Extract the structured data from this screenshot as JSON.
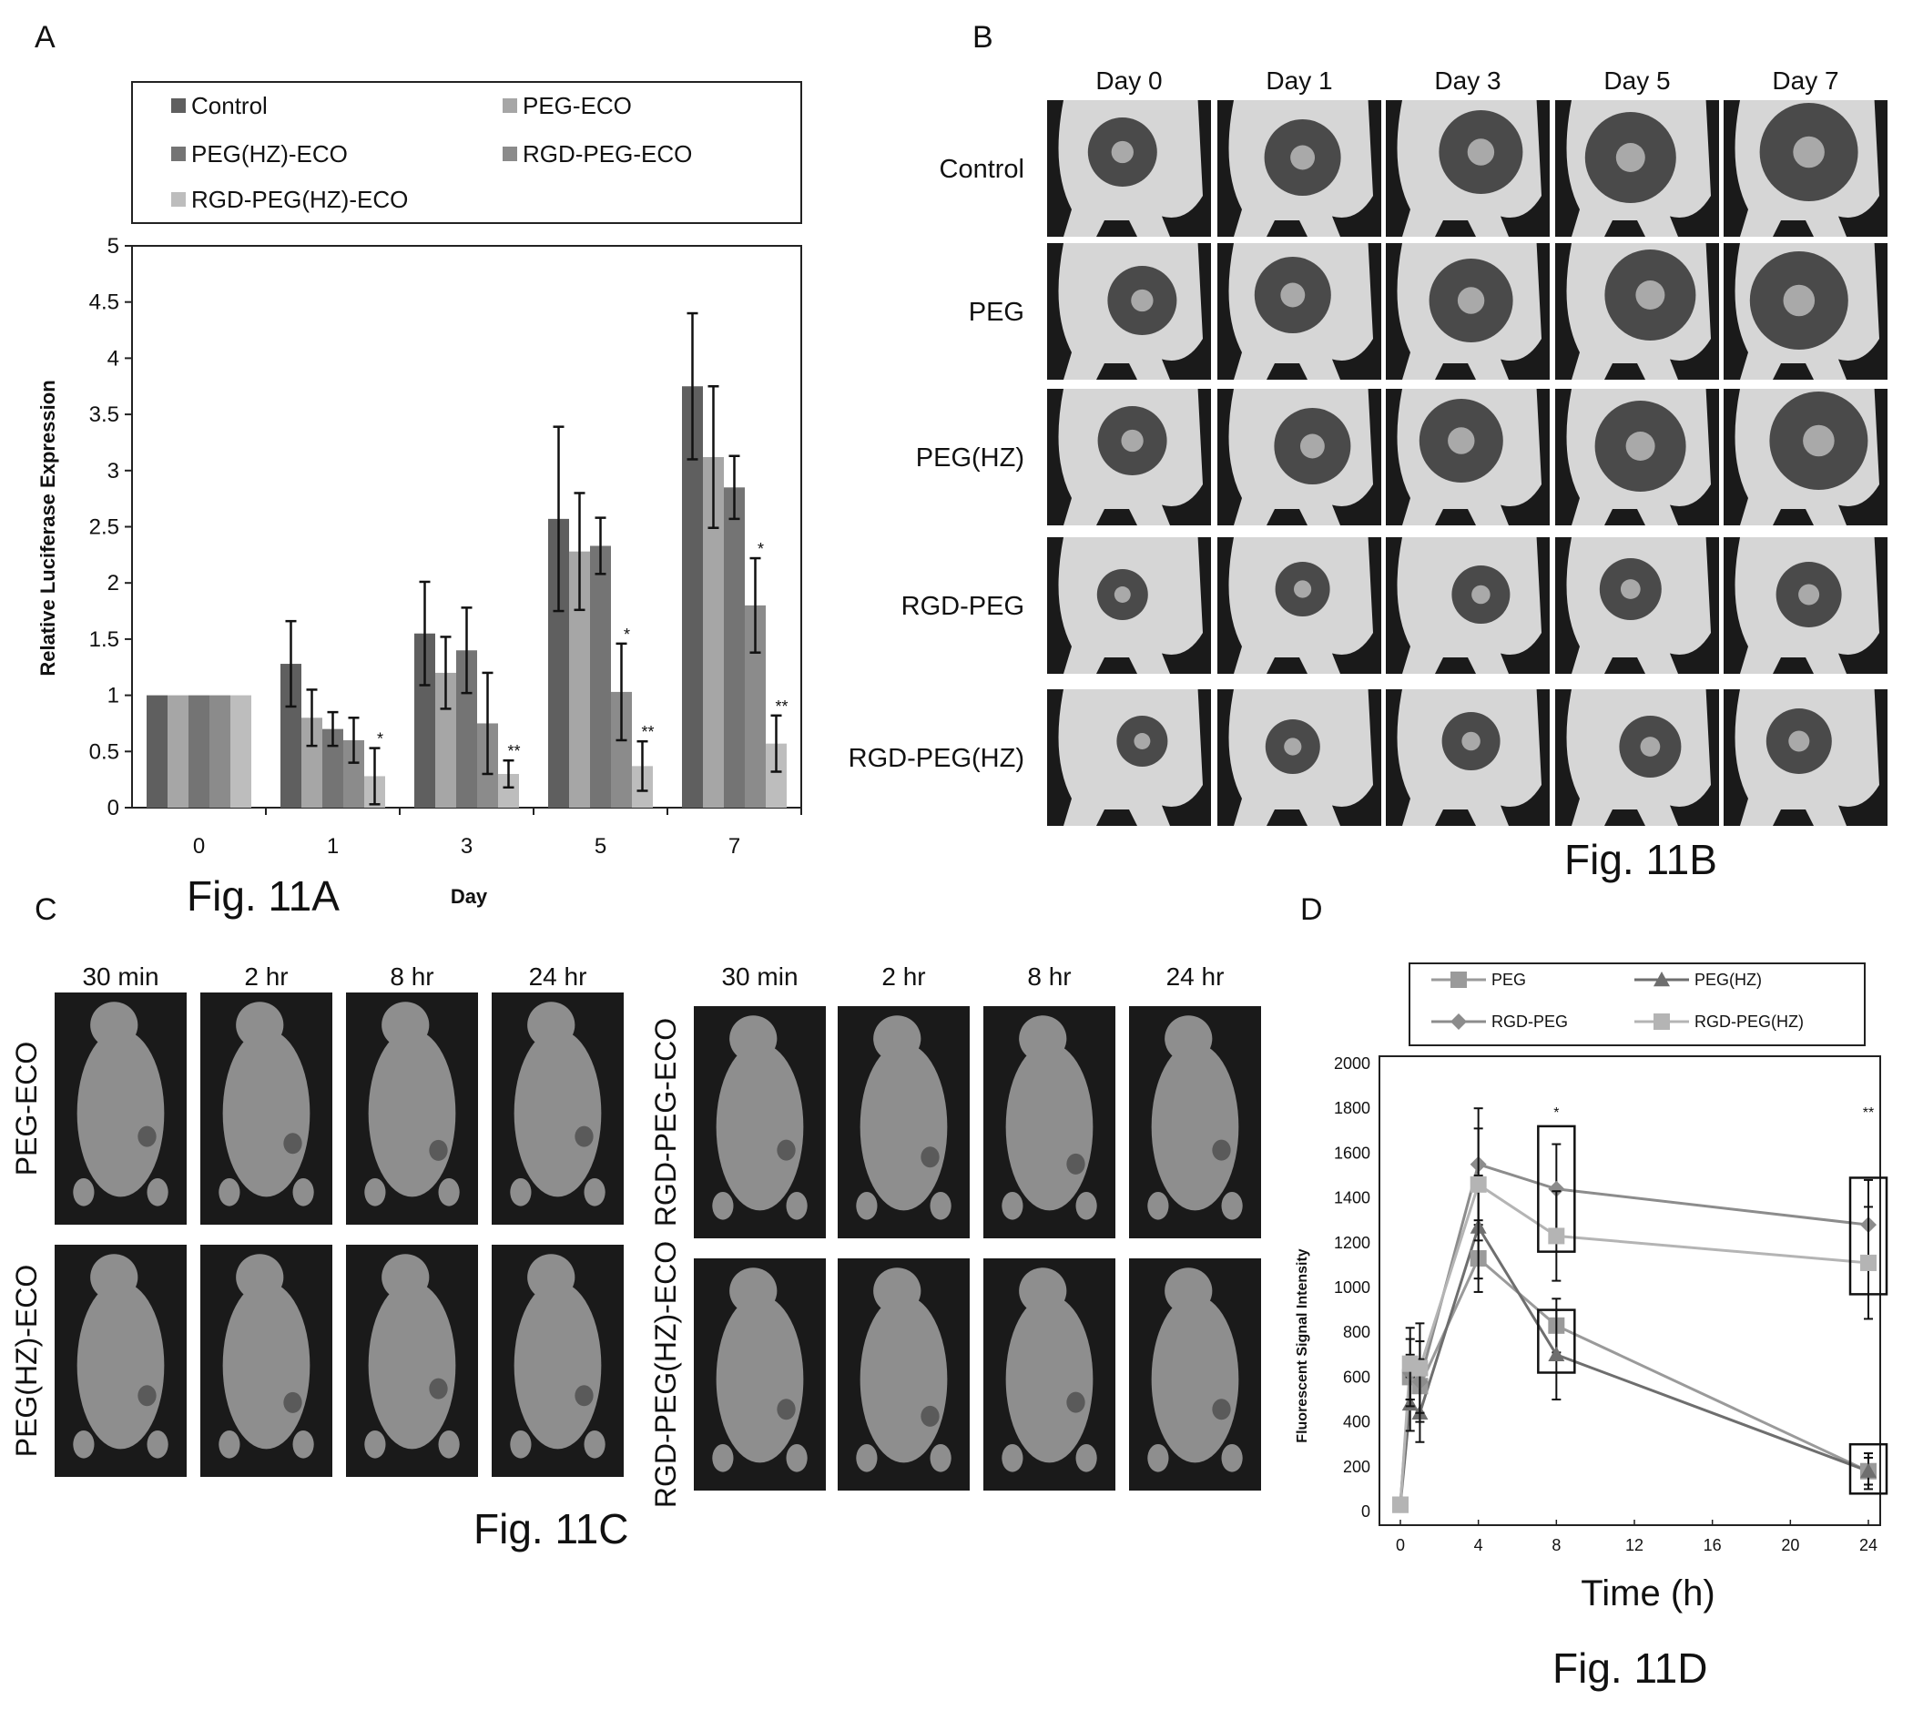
{
  "panel_letters": {
    "a": "A",
    "b": "B",
    "c": "C",
    "d": "D"
  },
  "captions": {
    "a": "Fig. 11A",
    "b": "Fig. 11B",
    "c": "Fig. 11C",
    "d": "Fig. 11D"
  },
  "chart_data": [
    {
      "id": "fig11a",
      "type": "bar",
      "xlabel": "Day",
      "ylabel": "Relative Luciferase Expression",
      "ylim": [
        0,
        5
      ],
      "yticks": [
        "0",
        "0.5",
        "1",
        "1.5",
        "2",
        "2.5",
        "3",
        "3.5",
        "4",
        "4.5",
        "5"
      ],
      "categories": [
        "0",
        "1",
        "3",
        "5",
        "7"
      ],
      "legend_position": "top",
      "series": [
        {
          "name": "Control",
          "color": "#5f5f5f",
          "values": [
            1.0,
            1.28,
            1.55,
            2.57,
            3.75
          ],
          "errors": [
            0,
            0.38,
            0.46,
            0.82,
            0.65
          ]
        },
        {
          "name": "PEG-ECO",
          "color": "#a6a6a6",
          "values": [
            1.0,
            0.8,
            1.2,
            2.28,
            3.12
          ],
          "errors": [
            0,
            0.25,
            0.32,
            0.52,
            0.63
          ]
        },
        {
          "name": "PEG(HZ)-ECO",
          "color": "#747474",
          "values": [
            1.0,
            0.7,
            1.4,
            2.33,
            2.85
          ],
          "errors": [
            0,
            0.15,
            0.38,
            0.25,
            0.28
          ]
        },
        {
          "name": "RGD-PEG-ECO",
          "color": "#8b8b8b",
          "values": [
            1.0,
            0.6,
            0.75,
            1.03,
            1.8
          ],
          "errors": [
            0,
            0.2,
            0.45,
            0.43,
            0.42
          ]
        },
        {
          "name": "RGD-PEG(HZ)-ECO",
          "color": "#bdbdbd",
          "values": [
            1.0,
            0.28,
            0.3,
            0.37,
            0.57
          ],
          "errors": [
            0,
            0.25,
            0.12,
            0.22,
            0.25
          ]
        }
      ],
      "annotations": [
        {
          "category": "1",
          "series": "RGD-PEG(HZ)-ECO",
          "text": "*"
        },
        {
          "category": "3",
          "series": "RGD-PEG(HZ)-ECO",
          "text": "**"
        },
        {
          "category": "5",
          "series": "RGD-PEG-ECO",
          "text": "*"
        },
        {
          "category": "5",
          "series": "RGD-PEG(HZ)-ECO",
          "text": "**"
        },
        {
          "category": "7",
          "series": "RGD-PEG-ECO",
          "text": "*"
        },
        {
          "category": "7",
          "series": "RGD-PEG(HZ)-ECO",
          "text": "**"
        }
      ]
    },
    {
      "id": "fig11d",
      "type": "line",
      "xlabel": "Time (h)",
      "ylabel": "Fluorescent Signal Intensity",
      "xlim": [
        0,
        24
      ],
      "ylim": [
        0,
        2000
      ],
      "xticks": [
        "0",
        "4",
        "8",
        "12",
        "16",
        "20",
        "24"
      ],
      "yticks": [
        "0",
        "200",
        "400",
        "600",
        "800",
        "1000",
        "1200",
        "1400",
        "1600",
        "1800",
        "2000"
      ],
      "x": [
        0,
        0.5,
        1,
        4,
        8,
        24
      ],
      "legend_position": "top",
      "series": [
        {
          "name": "PEG",
          "marker": "square",
          "color": "#9a9a9a",
          "values": [
            30,
            600,
            560,
            1130,
            830,
            180
          ],
          "errors": [
            0,
            100,
            120,
            150,
            120,
            60
          ]
        },
        {
          "name": "PEG(HZ)",
          "marker": "triangle",
          "color": "#6e6e6e",
          "values": [
            30,
            480,
            440,
            1270,
            700,
            180
          ],
          "errors": [
            0,
            120,
            130,
            230,
            200,
            80
          ]
        },
        {
          "name": "RGD-PEG",
          "marker": "diamond",
          "color": "#8c8c8c",
          "values": [
            30,
            620,
            580,
            1550,
            1440,
            1280
          ],
          "errors": [
            0,
            150,
            180,
            250,
            200,
            200
          ]
        },
        {
          "name": "RGD-PEG(HZ)",
          "marker": "square",
          "color": "#b4b4b4",
          "values": [
            30,
            660,
            640,
            1460,
            1230,
            1110
          ],
          "errors": [
            0,
            160,
            200,
            250,
            200,
            250
          ]
        }
      ],
      "annotations": [
        {
          "x": 8,
          "text": "*"
        },
        {
          "x": 24,
          "text": "**"
        }
      ]
    }
  ],
  "fig11b": {
    "columns": [
      "Day 0",
      "Day 1",
      "Day 3",
      "Day 5",
      "Day 7"
    ],
    "rows": [
      "Control",
      "PEG",
      "PEG(HZ)",
      "RGD-PEG",
      "RGD-PEG(HZ)"
    ]
  },
  "fig11c": {
    "left_group": {
      "columns": [
        "30 min",
        "2 hr",
        "8 hr",
        "24 hr"
      ],
      "rows": [
        "PEG-ECO",
        "PEG(HZ)-ECO"
      ]
    },
    "right_group": {
      "columns": [
        "30 min",
        "2 hr",
        "8 hr",
        "24 hr"
      ],
      "rows": [
        "RGD-PEG-ECO",
        "RGD-PEG(HZ)-ECO"
      ]
    }
  },
  "colors": {
    "image_bg": "#1a1a1a",
    "mouse_body": "#d6d6d6",
    "tumor_outer": "#4a4a4a",
    "tumor_inner": "#a9a9a9",
    "mouse_dark": "#8e8e8e"
  }
}
